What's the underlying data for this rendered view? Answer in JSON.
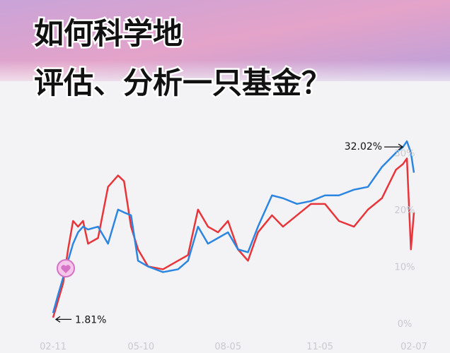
{
  "chart_data": {
    "type": "line",
    "title_lines": [
      "如何科学地",
      "评估、分析一只基金？"
    ],
    "annotations": [
      {
        "text": "32.02%",
        "x": 354,
        "y": 32.02
      },
      {
        "text": "1.81%",
        "x": 0,
        "y": 1.81
      }
    ],
    "x": [
      0,
      5,
      10,
      15,
      20,
      25,
      30,
      35,
      45,
      55,
      65,
      71,
      78,
      85,
      95,
      110,
      125,
      135,
      145,
      155,
      165,
      175,
      185,
      195,
      205,
      219,
      230,
      244,
      258,
      272,
      286,
      301,
      315,
      329,
      343,
      350,
      354,
      358,
      361
    ],
    "series": [
      {
        "color": "#e8353a",
        "values": [
          1,
          4,
          7,
          13,
          18,
          17,
          18,
          14,
          15,
          24,
          26,
          25,
          17,
          13,
          10,
          9.5,
          11,
          12,
          20,
          17,
          16,
          18,
          13,
          11,
          16,
          19,
          17,
          19,
          21,
          21,
          18,
          17,
          20,
          22,
          27,
          28,
          29,
          13,
          19.5
        ]
      },
      {
        "color": "#2a86e0",
        "values": [
          1.81,
          5,
          8,
          11,
          14,
          16,
          17,
          16.5,
          17,
          14,
          20,
          19.5,
          19,
          11,
          10,
          9,
          9.5,
          11,
          17,
          14,
          15,
          16,
          13,
          12.5,
          17,
          22.5,
          22,
          21,
          21.5,
          22.5,
          22.5,
          23.5,
          24,
          27.5,
          30,
          31,
          32.02,
          30,
          26.5
        ]
      }
    ],
    "xlim": [
      0,
      361
    ],
    "xticks": [
      {
        "value": 0,
        "label": "02-11"
      },
      {
        "value": 88,
        "label": "05-10"
      },
      {
        "value": 175,
        "label": "08-05"
      },
      {
        "value": 267,
        "label": "11-05"
      },
      {
        "value": 361,
        "label": "02-07"
      }
    ],
    "ylim": [
      -1.5,
      37
    ],
    "yticks": [
      {
        "value": 0,
        "label": "0%"
      },
      {
        "value": 10,
        "label": "10%"
      },
      {
        "value": 20,
        "label": "20%"
      },
      {
        "value": 30,
        "label": "30%"
      }
    ]
  }
}
